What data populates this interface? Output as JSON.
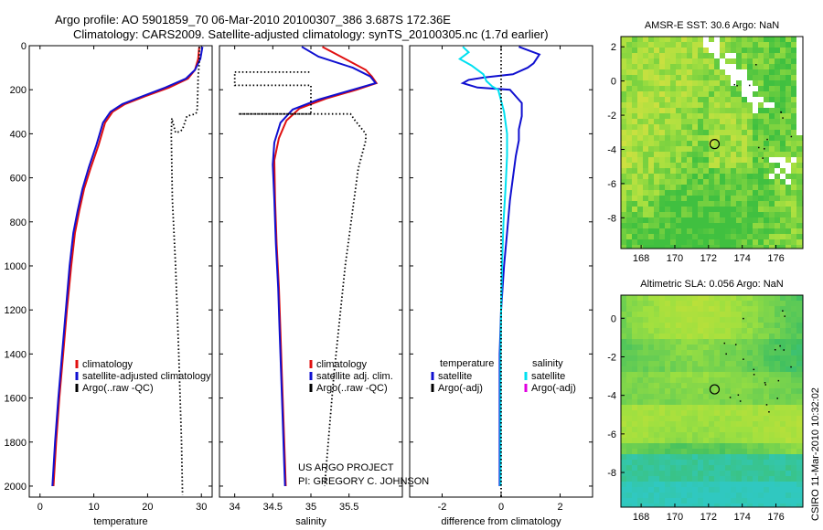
{
  "title": {
    "line1": "Argo profile: AO 5901859_70 06-Mar-2010 20100307_386 3.687S 172.36E",
    "line2": "Climatology: CARS2009. Satellite-adjusted climatology: synTS_20100305.nc (1.7d earlier)"
  },
  "credits": {
    "project": "US ARGO PROJECT",
    "pi": "PI: GREGORY C. JOHNSON",
    "stamp": "CSIRO 11-Mar-2010 10:32:02"
  },
  "colors": {
    "climatology": "#e01010",
    "satellite": "#1010d0",
    "argo": "#000000",
    "sat_salinity": "#00e0f0",
    "argo_salinity_adj": "#e000e0"
  },
  "chart_data": [
    {
      "type": "line",
      "panel": "temperature",
      "xlabel": "temperature",
      "ylabel": "",
      "xlim": [
        -2,
        32
      ],
      "ylim": [
        2050,
        0
      ],
      "x_ticks": [
        "0",
        "10",
        "20",
        "30"
      ],
      "x_tick_values": [
        0,
        10,
        20,
        30
      ],
      "y_ticks": [
        "0",
        "200",
        "400",
        "600",
        "800",
        "1000",
        "1200",
        "1400",
        "1600",
        "1800",
        "2000"
      ],
      "y_tick_values": [
        0,
        200,
        400,
        600,
        800,
        1000,
        1200,
        1400,
        1600,
        1800,
        2000
      ],
      "legend": [
        "climatology",
        "satellite-adjusted climatology",
        "Argo(..raw -QC)"
      ],
      "series": [
        {
          "name": "climatology",
          "style": "solid",
          "color": "#e01010",
          "points": [
            [
              29.6,
              5
            ],
            [
              29.4,
              60
            ],
            [
              28.8,
              110
            ],
            [
              27.5,
              150
            ],
            [
              24.0,
              190
            ],
            [
              19.5,
              230
            ],
            [
              15.8,
              265
            ],
            [
              13.5,
              300
            ],
            [
              12.1,
              350
            ],
            [
              10.9,
              450
            ],
            [
              9.5,
              550
            ],
            [
              8.2,
              650
            ],
            [
              7.3,
              750
            ],
            [
              6.5,
              850
            ],
            [
              5.8,
              1000
            ],
            [
              5.0,
              1200
            ],
            [
              4.3,
              1400
            ],
            [
              3.6,
              1600
            ],
            [
              3.0,
              1800
            ],
            [
              2.5,
              2000
            ]
          ]
        },
        {
          "name": "satellite-adjusted climatology",
          "style": "solid",
          "color": "#1010d0",
          "points": [
            [
              30.2,
              5
            ],
            [
              29.8,
              60
            ],
            [
              28.8,
              110
            ],
            [
              27.1,
              150
            ],
            [
              23.3,
              190
            ],
            [
              19.0,
              230
            ],
            [
              15.3,
              265
            ],
            [
              13.1,
              300
            ],
            [
              11.7,
              350
            ],
            [
              10.5,
              450
            ],
            [
              9.1,
              550
            ],
            [
              7.9,
              650
            ],
            [
              7.0,
              750
            ],
            [
              6.2,
              850
            ],
            [
              5.5,
              1000
            ],
            [
              4.8,
              1200
            ],
            [
              4.1,
              1400
            ],
            [
              3.4,
              1600
            ],
            [
              2.8,
              1800
            ],
            [
              2.3,
              2000
            ]
          ]
        },
        {
          "name": "Argo(..raw -QC)",
          "style": "dotted",
          "color": "#000000",
          "points": [
            [
              29.6,
              5
            ],
            [
              29.6,
              80
            ],
            [
              29.4,
              140
            ],
            [
              29.3,
              240
            ],
            [
              29.2,
              300
            ],
            [
              28.9,
              310
            ],
            [
              27.3,
              320
            ],
            [
              26.5,
              380
            ],
            [
              26.0,
              390
            ],
            [
              25.2,
              395
            ],
            [
              24.5,
              330
            ],
            [
              24.4,
              400
            ],
            [
              24.6,
              700
            ],
            [
              25.2,
              1000
            ],
            [
              25.8,
              1400
            ],
            [
              26.3,
              1800
            ],
            [
              26.5,
              2040
            ]
          ]
        }
      ]
    },
    {
      "type": "line",
      "panel": "salinity",
      "xlabel": "salinity",
      "ylabel": "",
      "xlim": [
        33.8,
        36.2
      ],
      "ylim": [
        2050,
        0
      ],
      "x_ticks": [
        "34",
        "34.5",
        "35",
        "35.5"
      ],
      "x_tick_values": [
        34,
        34.5,
        35,
        35.5
      ],
      "legend": [
        "climatology",
        "satellite adj. clim.",
        "Argo(..raw -QC)"
      ],
      "series": [
        {
          "name": "climatology",
          "style": "solid",
          "color": "#e01010",
          "points": [
            [
              35.15,
              5
            ],
            [
              35.45,
              60
            ],
            [
              35.72,
              110
            ],
            [
              35.8,
              140
            ],
            [
              35.86,
              170
            ],
            [
              35.6,
              200
            ],
            [
              35.2,
              240
            ],
            [
              34.85,
              285
            ],
            [
              34.68,
              340
            ],
            [
              34.58,
              420
            ],
            [
              34.52,
              520
            ],
            [
              34.53,
              700
            ],
            [
              34.55,
              900
            ],
            [
              34.58,
              1100
            ],
            [
              34.6,
              1300
            ],
            [
              34.62,
              1500
            ],
            [
              34.64,
              1700
            ],
            [
              34.66,
              1900
            ],
            [
              34.67,
              2000
            ]
          ]
        },
        {
          "name": "satellite adj. clim.",
          "style": "solid",
          "color": "#1010d0",
          "points": [
            [
              34.88,
              5
            ],
            [
              35.1,
              50
            ],
            [
              35.55,
              100
            ],
            [
              35.78,
              140
            ],
            [
              35.85,
              170
            ],
            [
              35.55,
              200
            ],
            [
              35.1,
              245
            ],
            [
              34.76,
              290
            ],
            [
              34.6,
              350
            ],
            [
              34.52,
              440
            ],
            [
              34.5,
              540
            ],
            [
              34.52,
              700
            ],
            [
              34.54,
              900
            ],
            [
              34.57,
              1100
            ],
            [
              34.59,
              1300
            ],
            [
              34.61,
              1500
            ],
            [
              34.63,
              1700
            ],
            [
              34.65,
              1900
            ],
            [
              34.66,
              2000
            ]
          ]
        },
        {
          "name": "Argo(..raw -QC)",
          "style": "dotted",
          "color": "#000000",
          "points": [
            [
              34.98,
              120
            ],
            [
              34.0,
              120
            ],
            [
              34.0,
              180
            ],
            [
              35.0,
              180
            ],
            [
              35.0,
              310
            ],
            [
              34.05,
              310
            ],
            [
              35.52,
              310
            ],
            [
              35.58,
              340
            ],
            [
              35.72,
              400
            ],
            [
              35.72,
              430
            ],
            [
              35.62,
              560
            ],
            [
              35.45,
              1000
            ],
            [
              35.3,
              1500
            ],
            [
              35.18,
              2000
            ]
          ]
        }
      ]
    },
    {
      "type": "line",
      "panel": "difference",
      "xlabel": "difference from climatology",
      "ylabel": "",
      "xlim": [
        -3.1,
        3.1
      ],
      "ylim": [
        2050,
        0
      ],
      "x_ticks": [
        "-2",
        "0",
        "2"
      ],
      "x_tick_values": [
        -2,
        0,
        2
      ],
      "legend_headers": [
        "temperature",
        "salinity"
      ],
      "legend": [
        "satellite",
        "Argo(-adj)",
        "satellite",
        "Argo(-adj)"
      ],
      "series": [
        {
          "name": "temperature satellite",
          "style": "solid",
          "color": "#1010d0",
          "points": [
            [
              0.6,
              5
            ],
            [
              1.3,
              40
            ],
            [
              1.1,
              80
            ],
            [
              0.9,
              100
            ],
            [
              0.4,
              130
            ],
            [
              -0.6,
              145
            ],
            [
              -1.1,
              155
            ],
            [
              -1.3,
              170
            ],
            [
              -0.8,
              190
            ],
            [
              0.3,
              200
            ],
            [
              0.7,
              260
            ],
            [
              0.7,
              320
            ],
            [
              0.6,
              380
            ],
            [
              0.6,
              430
            ],
            [
              0.5,
              500
            ],
            [
              0.4,
              600
            ],
            [
              0.3,
              700
            ],
            [
              0.2,
              850
            ],
            [
              0.1,
              1000
            ],
            [
              0.0,
              1200
            ],
            [
              -0.05,
              1400
            ],
            [
              -0.05,
              1600
            ],
            [
              -0.05,
              1800
            ],
            [
              -0.05,
              2000
            ]
          ]
        },
        {
          "name": "salinity satellite",
          "style": "solid",
          "color": "#00e0f0",
          "points": [
            [
              -1.3,
              5
            ],
            [
              -1.1,
              30
            ],
            [
              -1.4,
              60
            ],
            [
              -1.0,
              90
            ],
            [
              -0.6,
              130
            ],
            [
              -0.5,
              160
            ],
            [
              -0.3,
              185
            ],
            [
              -0.1,
              200
            ],
            [
              0.1,
              300
            ],
            [
              0.2,
              400
            ],
            [
              0.2,
              500
            ],
            [
              0.15,
              650
            ],
            [
              0.08,
              800
            ],
            [
              0.03,
              1000
            ],
            [
              0.0,
              1200
            ],
            [
              -0.02,
              1400
            ],
            [
              -0.02,
              1600
            ],
            [
              -0.02,
              1800
            ],
            [
              -0.02,
              2000
            ]
          ]
        },
        {
          "name": "zero line",
          "style": "dotted",
          "color": "#000000",
          "points": [
            [
              0,
              0
            ],
            [
              0,
              2050
            ]
          ]
        }
      ]
    },
    {
      "type": "heatmap",
      "panel": "map-sst",
      "title": "AMSR-E SST: 30.6 Argo: NaN",
      "xlim": [
        166.8,
        177.6
      ],
      "ylim": [
        -9.8,
        2.6
      ],
      "x_ticks": [
        "168",
        "170",
        "172",
        "174",
        "176"
      ],
      "x_tick_values": [
        168,
        170,
        172,
        174,
        176
      ],
      "y_ticks": [
        "2",
        "0",
        "-2",
        "-4",
        "-6",
        "-8"
      ],
      "y_tick_values": [
        2,
        0,
        -2,
        -4,
        -6,
        -8
      ],
      "marker": [
        172.36,
        -3.687
      ]
    },
    {
      "type": "heatmap",
      "panel": "map-sla",
      "title": "Altimetric SLA: 0.056 Argo: NaN",
      "xlim": [
        166.8,
        177.6
      ],
      "ylim": [
        -9.8,
        1.2
      ],
      "x_ticks": [
        "168",
        "170",
        "172",
        "174",
        "176"
      ],
      "x_tick_values": [
        168,
        170,
        172,
        174,
        176
      ],
      "y_ticks": [
        "0",
        "-2",
        "-4",
        "-6",
        "-8"
      ],
      "y_tick_values": [
        0,
        -2,
        -4,
        -6,
        -8
      ],
      "marker": [
        172.36,
        -3.687
      ]
    }
  ]
}
